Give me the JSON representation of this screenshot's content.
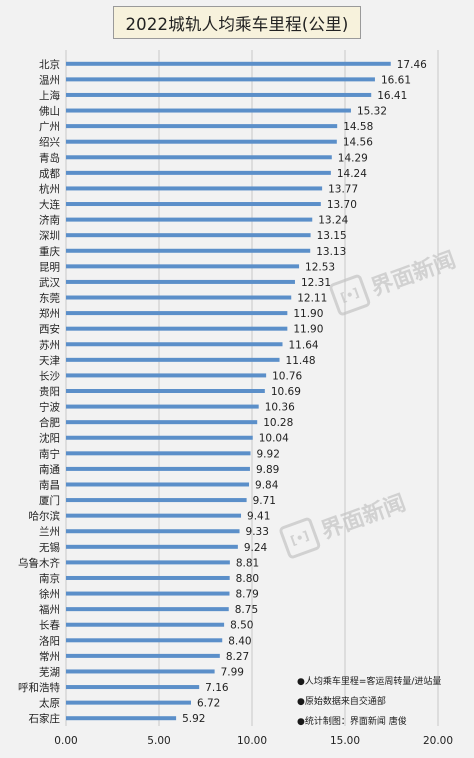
{
  "chart_data": {
    "type": "bar",
    "orientation": "horizontal",
    "title": "2022城轨人均乘车里程(公里)",
    "categories": [
      "北京",
      "温州",
      "上海",
      "佛山",
      "广州",
      "绍兴",
      "青岛",
      "成都",
      "杭州",
      "大连",
      "济南",
      "深圳",
      "重庆",
      "昆明",
      "武汉",
      "东莞",
      "郑州",
      "西安",
      "苏州",
      "天津",
      "长沙",
      "贵阳",
      "宁波",
      "合肥",
      "沈阳",
      "南宁",
      "南通",
      "南昌",
      "厦门",
      "哈尔滨",
      "兰州",
      "无锡",
      "乌鲁木齐",
      "南京",
      "徐州",
      "福州",
      "长春",
      "洛阳",
      "常州",
      "芜湖",
      "呼和浩特",
      "太原",
      "石家庄"
    ],
    "values": [
      17.46,
      16.61,
      16.41,
      15.32,
      14.58,
      14.56,
      14.29,
      14.24,
      13.77,
      13.7,
      13.24,
      13.15,
      13.13,
      12.53,
      12.31,
      12.11,
      11.9,
      11.9,
      11.64,
      11.48,
      10.76,
      10.69,
      10.36,
      10.28,
      10.04,
      9.92,
      9.89,
      9.84,
      9.71,
      9.41,
      9.33,
      9.24,
      8.81,
      8.8,
      8.79,
      8.75,
      8.5,
      8.4,
      8.27,
      7.99,
      7.16,
      6.72,
      5.92
    ],
    "value_labels": [
      "17.46",
      "16.61",
      "16.41",
      "15.32",
      "14.58",
      "14.56",
      "14.29",
      "14.24",
      "13.77",
      "13.70",
      "13.24",
      "13.15",
      "13.13",
      "12.53",
      "12.31",
      "12.11",
      "11.90",
      "11.90",
      "11.64",
      "11.48",
      "10.76",
      "10.69",
      "10.36",
      "10.28",
      "10.04",
      "9.92",
      "9.89",
      "9.84",
      "9.71",
      "9.41",
      "9.33",
      "9.24",
      "8.81",
      "8.80",
      "8.79",
      "8.75",
      "8.50",
      "8.40",
      "8.27",
      "7.99",
      "7.16",
      "6.72",
      "5.92"
    ],
    "xlim": [
      0,
      20
    ],
    "x_ticks": [
      "0.00",
      "5.00",
      "10.00",
      "15.00",
      "20.00"
    ],
    "grid": true,
    "bar_color": "#5b8fc9"
  },
  "notes": [
    "●人均乘车里程=客运周转量/进站量",
    "●原始数据来自交通部",
    "●统计制图：界面新闻 唐俊"
  ],
  "watermark": {
    "text": "界面新闻",
    "logo_text": "[•]"
  }
}
